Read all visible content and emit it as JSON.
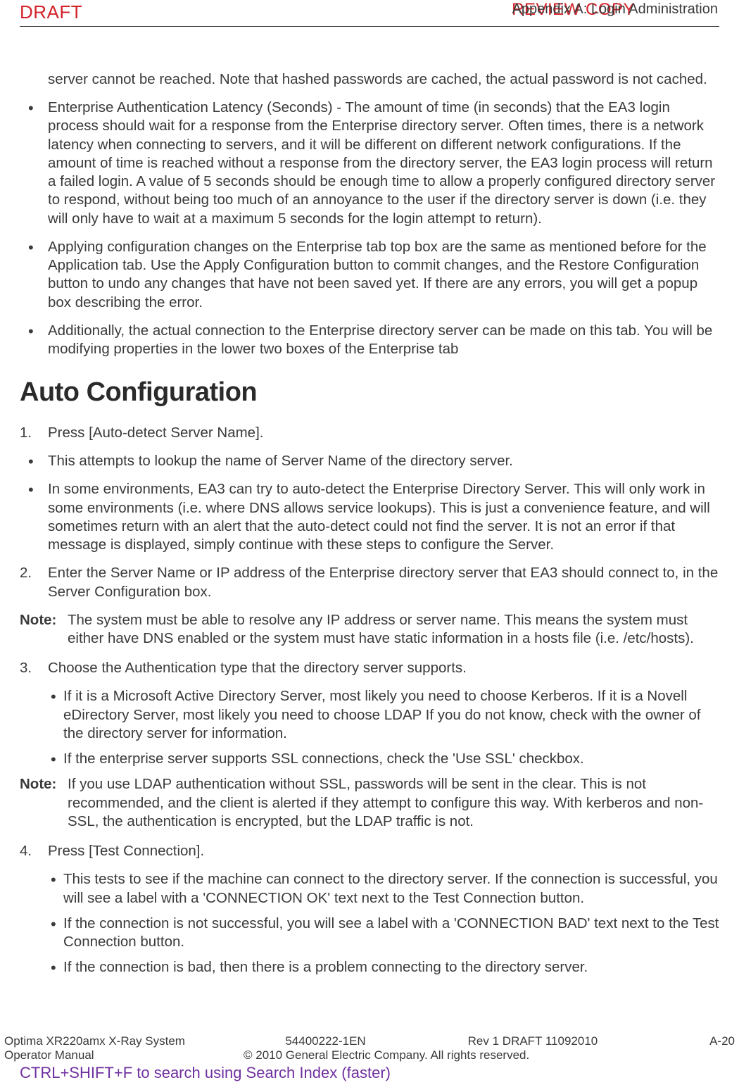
{
  "header": {
    "draft": "DRAFT",
    "review": "REVIEW COPY",
    "appendix": "Appendix A: Login Administration"
  },
  "intro_para": "server cannot be reached. Note that hashed passwords are cached, the actual password is not cached.",
  "top_bullets": [
    "Enterprise Authentication Latency (Seconds) - The amount of time (in seconds) that the EA3 login process should wait for a response from the Enterprise directory server. Often times, there is a network latency when connecting to servers, and it will be different on different network configurations. If the amount of time is reached without a response from the directory server, the EA3 login process will return a failed login. A value of 5 seconds should be enough time to allow a properly configured directory server to respond, without being too much of an annoyance to the user if the directory server is down (i.e. they will only have to wait at a maximum 5 seconds for the login attempt to return).",
    "Applying configuration changes on the Enterprise tab top box are the same as mentioned before for the Application tab. Use the Apply Configuration button to commit changes, and the Restore Configuration button to undo any changes that have not been saved yet. If there are any errors, you will get a popup box describing the error.",
    "Additionally, the actual connection to the Enterprise directory server can be made on this tab. You will be modifying properties in the lower two boxes of the Enterprise tab"
  ],
  "section_title": "Auto Configuration",
  "step1": "Press [Auto-detect Server Name].",
  "step1_bullets": [
    "This attempts to lookup the name of Server Name of the directory server.",
    "In some environments, EA3 can try to auto-detect the Enterprise Directory Server. This will only work in some environments (i.e. where DNS allows service lookups). This is just a convenience feature, and will sometimes return with an alert that the auto-detect could not find the server. It is not an error if that message is displayed, simply continue with these steps to configure the Server."
  ],
  "step2": "Enter the Server Name or IP address of the Enterprise directory server that EA3 should connect to, in the Server Configuration box.",
  "note1_label": "Note:",
  "note1": "The system must be able to resolve any IP address or server name. This means the system must either have DNS enabled or the system must have static information in a hosts file (i.e. /etc/hosts).",
  "step3": "Choose the Authentication type that the directory server supports.",
  "step3_sub": [
    "If it is a Microsoft Active Directory Server, most likely you need to choose Kerberos. If it is a Novell eDirectory Server, most likely you need to choose LDAP If you do not know, check with the owner of the directory server for information.",
    "If the enterprise server supports SSL connections, check the 'Use SSL' checkbox."
  ],
  "note2_label": "Note:",
  "note2": "If you use LDAP authentication without SSL, passwords will be sent in the clear. This is not recommended, and the client is alerted if they attempt to configure this way. With kerberos and non-SSL, the authentication is encrypted, but the LDAP traffic is not.",
  "step4": "Press [Test Connection].",
  "step4_sub": [
    "This tests to see if the machine can connect to the directory server. If the connection is successful, you will see a label with a 'CONNECTION OK' text next to the Test Connection button.",
    "If the connection is not successful, you will see a label with a 'CONNECTION BAD' text next to the Test Connection button.",
    "If the connection is bad, then there is a problem connecting to the directory server."
  ],
  "footer": {
    "product": "Optima XR220amx X-Ray System",
    "manual": "Operator Manual",
    "docnum": "54400222-1EN",
    "rev": "Rev 1 DRAFT 11092010",
    "page": "A-20",
    "copyright": "© 2010 General Electric Company. All rights reserved.",
    "search": "CTRL+SHIFT+F to search using Search Index (faster)"
  }
}
